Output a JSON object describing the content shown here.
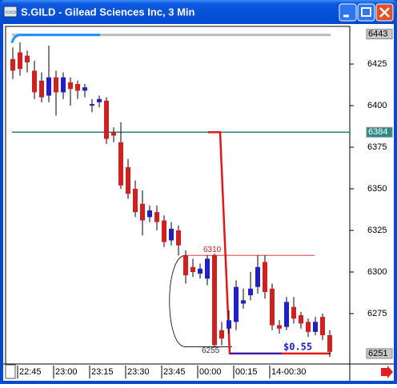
{
  "window": {
    "title": "S.GILD - Gilead Sciences Inc, 3 Min"
  },
  "chart_data": {
    "type": "candlestick",
    "categories": [
      null,
      "22:45",
      null,
      null,
      null,
      null,
      "23:00",
      null,
      null,
      null,
      null,
      "23:15",
      null,
      null,
      null,
      null,
      "23:30",
      null,
      null,
      null,
      null,
      "23:45",
      null,
      null,
      null,
      null,
      "00:00",
      null,
      null,
      null,
      null,
      "00:15",
      null,
      null,
      null,
      null,
      "14-00:30",
      null,
      null,
      null,
      null,
      null,
      null,
      null,
      null
    ],
    "series": [
      {
        "up_color": "#2020c8",
        "down_color": "#d02020",
        "open": [
          6428,
          6432,
          6430,
          6421,
          6415,
          6406,
          6417,
          6408,
          6414,
          6413,
          6409,
          6400,
          6402,
          6403,
          6384,
          6378,
          6363,
          6350,
          6341,
          6333,
          6336,
          6331,
          6319,
          6325,
          6310,
          6303,
          6299,
          6296,
          6310,
          6265,
          6266,
          6270,
          6281,
          6286,
          6291,
          6306,
          6290,
          6268,
          6267,
          6279,
          6274,
          6270,
          6264,
          6273,
          6262
        ],
        "high": [
          6435,
          6438,
          6433,
          6427,
          6420,
          6436,
          6421,
          6420,
          6417,
          6415,
          6413,
          6404,
          6406,
          6405,
          6387,
          6390,
          6368,
          6355,
          6349,
          6340,
          6340,
          6334,
          6330,
          6328,
          6313,
          6308,
          6305,
          6310,
          6311,
          6270,
          6277,
          6295,
          6290,
          6300,
          6310,
          6310,
          6293,
          6271,
          6285,
          6285,
          6276,
          6272,
          6273,
          6275,
          6265
        ],
        "low": [
          6416,
          6418,
          6420,
          6404,
          6402,
          6402,
          6394,
          6404,
          6400,
          6404,
          6405,
          6396,
          6399,
          6377,
          6378,
          6350,
          6344,
          6333,
          6322,
          6330,
          6325,
          6315,
          6316,
          6310,
          6293,
          6297,
          6296,
          6292,
          6255,
          6256,
          6263,
          6265,
          6278,
          6283,
          6287,
          6284,
          6265,
          6263,
          6265,
          6269,
          6266,
          6261,
          6262,
          6259,
          6249
        ],
        "close": [
          6421,
          6422,
          6426,
          6408,
          6405,
          6417,
          6408,
          6417,
          6410,
          6409,
          6411,
          6401,
          6404,
          6380,
          6382,
          6352,
          6347,
          6336,
          6331,
          6337,
          6330,
          6318,
          6326,
          6316,
          6298,
          6300,
          6302,
          6308,
          6256,
          6260,
          6271,
          6291,
          6283,
          6290,
          6303,
          6288,
          6268,
          6266,
          6282,
          6272,
          6269,
          6264,
          6270,
          6262,
          6252
        ]
      }
    ],
    "ylim": [
      6244.7,
      6448.1
    ],
    "yticks": [
      6425,
      6400,
      6375,
      6350,
      6325,
      6300,
      6275
    ],
    "price_markers": [
      6443,
      6384,
      6251
    ],
    "measure": {
      "high": 6310,
      "low": 6255,
      "label": "$0.55"
    }
  }
}
